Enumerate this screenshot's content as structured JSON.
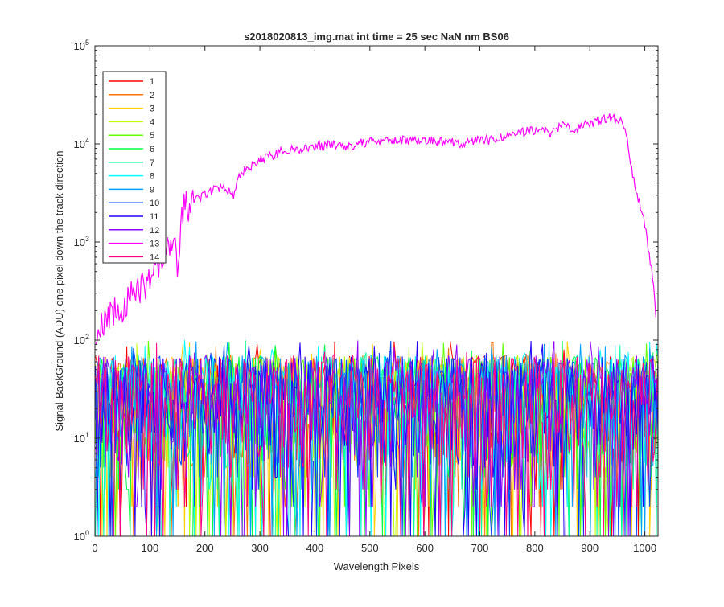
{
  "chart_data": {
    "type": "line",
    "title": "s2018020813_img.mat int time = 25 sec  NaN nm BS06",
    "xlabel": "Wavelength Pixels",
    "ylabel": "Signal-BackGround (ADU) one pixel down the track direction",
    "xlim": [
      0,
      1024
    ],
    "ylim": [
      1,
      100000
    ],
    "yscale": "log",
    "grid": false,
    "legend_position": "top-left",
    "x_ticks": [
      {
        "value": 0,
        "label": "0"
      },
      {
        "value": 100,
        "label": "100"
      },
      {
        "value": 200,
        "label": "200"
      },
      {
        "value": 300,
        "label": "300"
      },
      {
        "value": 400,
        "label": "400"
      },
      {
        "value": 500,
        "label": "500"
      },
      {
        "value": 600,
        "label": "600"
      },
      {
        "value": 700,
        "label": "700"
      },
      {
        "value": 800,
        "label": "800"
      },
      {
        "value": 900,
        "label": "900"
      },
      {
        "value": 1000,
        "label": "1000"
      }
    ],
    "y_ticks": [
      {
        "value": 1,
        "label": "10",
        "exp": "0"
      },
      {
        "value": 10,
        "label": "10",
        "exp": "1"
      },
      {
        "value": 100,
        "label": "10",
        "exp": "2"
      },
      {
        "value": 1000,
        "label": "10",
        "exp": "3"
      },
      {
        "value": 10000,
        "label": "10",
        "exp": "4"
      },
      {
        "value": 100000,
        "label": "10",
        "exp": "5"
      }
    ],
    "noise_series_range": {
      "min": 1,
      "max": 100
    },
    "series": [
      {
        "name": "1",
        "color": "#ff0000",
        "kind": "noise"
      },
      {
        "name": "2",
        "color": "#ff7000",
        "kind": "noise"
      },
      {
        "name": "3",
        "color": "#ffd000",
        "kind": "noise"
      },
      {
        "name": "4",
        "color": "#c0ff00",
        "kind": "noise"
      },
      {
        "name": "5",
        "color": "#60ff00",
        "kind": "noise"
      },
      {
        "name": "6",
        "color": "#00ff40",
        "kind": "noise"
      },
      {
        "name": "7",
        "color": "#00ffa0",
        "kind": "noise"
      },
      {
        "name": "8",
        "color": "#00ffff",
        "kind": "noise"
      },
      {
        "name": "9",
        "color": "#00a0ff",
        "kind": "noise"
      },
      {
        "name": "10",
        "color": "#0040ff",
        "kind": "noise"
      },
      {
        "name": "11",
        "color": "#2000ff",
        "kind": "noise"
      },
      {
        "name": "12",
        "color": "#9000ff",
        "kind": "noise"
      },
      {
        "name": "13",
        "color": "#ff00ff",
        "kind": "signal",
        "x": [
          2,
          10,
          20,
          40,
          60,
          80,
          100,
          120,
          130,
          140,
          150,
          160,
          170,
          200,
          230,
          255,
          260,
          280,
          300,
          330,
          360,
          400,
          430,
          460,
          500,
          550,
          600,
          650,
          670,
          700,
          720,
          760,
          800,
          830,
          850,
          870,
          900,
          920,
          940,
          955,
          965,
          980,
          1000,
          1015,
          1020
        ],
        "y": [
          80,
          120,
          160,
          200,
          250,
          330,
          420,
          650,
          800,
          1000,
          650,
          2000,
          2400,
          3000,
          3700,
          3000,
          4800,
          5600,
          6800,
          8000,
          8800,
          9400,
          10000,
          9500,
          10400,
          11000,
          11000,
          10500,
          9700,
          11500,
          10800,
          12500,
          14000,
          13000,
          15500,
          14000,
          16000,
          17500,
          18500,
          17000,
          14000,
          4200,
          1500,
          400,
          170
        ]
      },
      {
        "name": "14",
        "color": "#ff0080",
        "kind": "noise"
      }
    ]
  }
}
